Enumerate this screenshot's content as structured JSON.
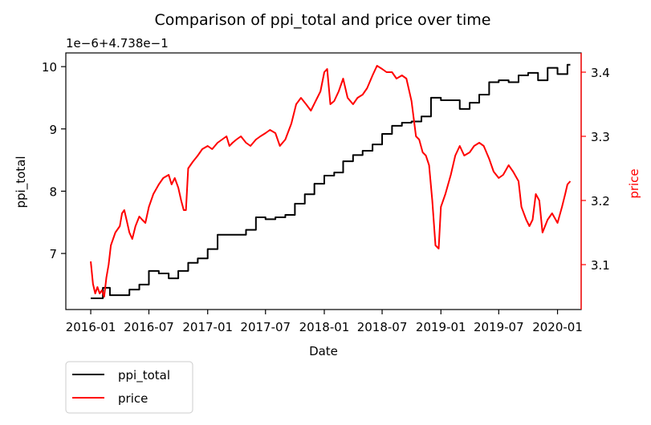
{
  "chart_data": {
    "type": "line",
    "title": "Comparison of ppi_total and price over time",
    "xlabel": "Date",
    "ylabel_left": "ppi_total",
    "ylabel_right": "price",
    "left_offset_text": "1e−6+4.738e−1",
    "x_ticks": [
      "2016-01",
      "2016-07",
      "2017-01",
      "2017-07",
      "2018-01",
      "2018-07",
      "2019-01",
      "2019-07",
      "2020-01"
    ],
    "y_left_ticks": [
      "7",
      "8",
      "9",
      "10"
    ],
    "y_right_ticks": [
      "3.1",
      "3.2",
      "3.3",
      "3.4"
    ],
    "xlim": [
      "2015-10-15",
      "2020-03-15"
    ],
    "ylim_left": [
      6.1,
      10.22
    ],
    "ylim_right": [
      3.03,
      3.43
    ],
    "grid": false,
    "legend_position": "below-left",
    "colors": {
      "ppi_total": "#000000",
      "price": "#ff0000"
    },
    "series": [
      {
        "name": "ppi_total",
        "axis": "left",
        "step": true,
        "points": [
          [
            "2016-01-01",
            6.28
          ],
          [
            "2016-02-08",
            6.28
          ],
          [
            "2016-02-08",
            6.45
          ],
          [
            "2016-03-01",
            6.45
          ],
          [
            "2016-03-01",
            6.33
          ],
          [
            "2016-05-01",
            6.33
          ],
          [
            "2016-05-01",
            6.42
          ],
          [
            "2016-06-01",
            6.42
          ],
          [
            "2016-06-01",
            6.5
          ],
          [
            "2016-07-01",
            6.5
          ],
          [
            "2016-07-01",
            6.72
          ],
          [
            "2016-08-01",
            6.72
          ],
          [
            "2016-08-01",
            6.68
          ],
          [
            "2016-09-01",
            6.68
          ],
          [
            "2016-09-01",
            6.6
          ],
          [
            "2016-10-01",
            6.6
          ],
          [
            "2016-10-01",
            6.72
          ],
          [
            "2016-11-01",
            6.72
          ],
          [
            "2016-11-01",
            6.85
          ],
          [
            "2016-12-01",
            6.85
          ],
          [
            "2016-12-01",
            6.92
          ],
          [
            "2017-01-01",
            6.92
          ],
          [
            "2017-01-01",
            7.07
          ],
          [
            "2017-02-01",
            7.07
          ],
          [
            "2017-02-01",
            7.3
          ],
          [
            "2017-05-01",
            7.3
          ],
          [
            "2017-05-01",
            7.38
          ],
          [
            "2017-06-01",
            7.38
          ],
          [
            "2017-06-01",
            7.58
          ],
          [
            "2017-07-01",
            7.58
          ],
          [
            "2017-07-01",
            7.55
          ],
          [
            "2017-08-01",
            7.55
          ],
          [
            "2017-08-01",
            7.58
          ],
          [
            "2017-09-01",
            7.58
          ],
          [
            "2017-09-01",
            7.62
          ],
          [
            "2017-10-01",
            7.62
          ],
          [
            "2017-10-01",
            7.8
          ],
          [
            "2017-11-01",
            7.8
          ],
          [
            "2017-11-01",
            7.95
          ],
          [
            "2017-12-01",
            7.95
          ],
          [
            "2017-12-01",
            8.12
          ],
          [
            "2018-01-01",
            8.12
          ],
          [
            "2018-01-01",
            8.25
          ],
          [
            "2018-02-01",
            8.25
          ],
          [
            "2018-02-01",
            8.3
          ],
          [
            "2018-03-01",
            8.3
          ],
          [
            "2018-03-01",
            8.48
          ],
          [
            "2018-04-01",
            8.48
          ],
          [
            "2018-04-01",
            8.58
          ],
          [
            "2018-05-01",
            8.58
          ],
          [
            "2018-05-01",
            8.65
          ],
          [
            "2018-06-01",
            8.65
          ],
          [
            "2018-06-01",
            8.75
          ],
          [
            "2018-07-01",
            8.75
          ],
          [
            "2018-07-01",
            8.92
          ],
          [
            "2018-08-01",
            8.92
          ],
          [
            "2018-08-01",
            9.05
          ],
          [
            "2018-09-01",
            9.05
          ],
          [
            "2018-09-01",
            9.1
          ],
          [
            "2018-10-01",
            9.1
          ],
          [
            "2018-10-01",
            9.12
          ],
          [
            "2018-11-01",
            9.12
          ],
          [
            "2018-11-01",
            9.2
          ],
          [
            "2018-12-01",
            9.2
          ],
          [
            "2018-12-01",
            9.5
          ],
          [
            "2019-01-01",
            9.5
          ],
          [
            "2019-01-01",
            9.46
          ],
          [
            "2019-03-01",
            9.46
          ],
          [
            "2019-03-01",
            9.32
          ],
          [
            "2019-04-01",
            9.32
          ],
          [
            "2019-04-01",
            9.42
          ],
          [
            "2019-05-01",
            9.42
          ],
          [
            "2019-05-01",
            9.55
          ],
          [
            "2019-06-01",
            9.55
          ],
          [
            "2019-06-01",
            9.75
          ],
          [
            "2019-07-01",
            9.75
          ],
          [
            "2019-07-01",
            9.78
          ],
          [
            "2019-08-01",
            9.78
          ],
          [
            "2019-08-01",
            9.75
          ],
          [
            "2019-09-01",
            9.75
          ],
          [
            "2019-09-01",
            9.86
          ],
          [
            "2019-10-01",
            9.86
          ],
          [
            "2019-10-01",
            9.9
          ],
          [
            "2019-11-01",
            9.9
          ],
          [
            "2019-11-01",
            9.78
          ],
          [
            "2019-12-01",
            9.78
          ],
          [
            "2019-12-01",
            9.98
          ],
          [
            "2020-01-01",
            9.98
          ],
          [
            "2020-01-01",
            9.88
          ],
          [
            "2020-02-01",
            9.88
          ],
          [
            "2020-02-01",
            10.03
          ],
          [
            "2020-02-10",
            10.03
          ]
        ]
      },
      {
        "name": "price",
        "axis": "right",
        "step": false,
        "points": [
          [
            "2016-01-01",
            3.105
          ],
          [
            "2016-01-08",
            3.07
          ],
          [
            "2016-01-15",
            3.055
          ],
          [
            "2016-01-22",
            3.065
          ],
          [
            "2016-01-29",
            3.055
          ],
          [
            "2016-02-05",
            3.06
          ],
          [
            "2016-02-12",
            3.05
          ],
          [
            "2016-02-19",
            3.08
          ],
          [
            "2016-02-26",
            3.1
          ],
          [
            "2016-03-04",
            3.13
          ],
          [
            "2016-03-11",
            3.14
          ],
          [
            "2016-03-18",
            3.15
          ],
          [
            "2016-03-25",
            3.155
          ],
          [
            "2016-04-01",
            3.16
          ],
          [
            "2016-04-08",
            3.18
          ],
          [
            "2016-04-15",
            3.185
          ],
          [
            "2016-04-22",
            3.17
          ],
          [
            "2016-05-01",
            3.15
          ],
          [
            "2016-05-10",
            3.14
          ],
          [
            "2016-05-20",
            3.16
          ],
          [
            "2016-06-01",
            3.175
          ],
          [
            "2016-06-10",
            3.17
          ],
          [
            "2016-06-20",
            3.165
          ],
          [
            "2016-07-01",
            3.19
          ],
          [
            "2016-07-15",
            3.21
          ],
          [
            "2016-08-01",
            3.225
          ],
          [
            "2016-08-15",
            3.235
          ],
          [
            "2016-09-01",
            3.24
          ],
          [
            "2016-09-10",
            3.225
          ],
          [
            "2016-09-20",
            3.235
          ],
          [
            "2016-10-01",
            3.22
          ],
          [
            "2016-10-10",
            3.2
          ],
          [
            "2016-10-18",
            3.185
          ],
          [
            "2016-10-25",
            3.185
          ],
          [
            "2016-11-01",
            3.25
          ],
          [
            "2016-11-15",
            3.26
          ],
          [
            "2016-12-01",
            3.27
          ],
          [
            "2016-12-15",
            3.28
          ],
          [
            "2017-01-01",
            3.285
          ],
          [
            "2017-01-15",
            3.28
          ],
          [
            "2017-02-01",
            3.29
          ],
          [
            "2017-02-15",
            3.295
          ],
          [
            "2017-03-01",
            3.3
          ],
          [
            "2017-03-10",
            3.285
          ],
          [
            "2017-03-20",
            3.29
          ],
          [
            "2017-04-01",
            3.295
          ],
          [
            "2017-04-15",
            3.3
          ],
          [
            "2017-05-01",
            3.29
          ],
          [
            "2017-05-15",
            3.285
          ],
          [
            "2017-06-01",
            3.295
          ],
          [
            "2017-06-15",
            3.3
          ],
          [
            "2017-07-01",
            3.305
          ],
          [
            "2017-07-15",
            3.31
          ],
          [
            "2017-08-01",
            3.305
          ],
          [
            "2017-08-15",
            3.285
          ],
          [
            "2017-09-01",
            3.295
          ],
          [
            "2017-09-20",
            3.32
          ],
          [
            "2017-10-05",
            3.35
          ],
          [
            "2017-10-20",
            3.36
          ],
          [
            "2017-11-05",
            3.35
          ],
          [
            "2017-11-20",
            3.34
          ],
          [
            "2017-12-05",
            3.355
          ],
          [
            "2017-12-20",
            3.37
          ],
          [
            "2018-01-01",
            3.4
          ],
          [
            "2018-01-10",
            3.405
          ],
          [
            "2018-01-20",
            3.35
          ],
          [
            "2018-02-01",
            3.355
          ],
          [
            "2018-02-15",
            3.37
          ],
          [
            "2018-03-01",
            3.39
          ],
          [
            "2018-03-15",
            3.36
          ],
          [
            "2018-04-01",
            3.35
          ],
          [
            "2018-04-15",
            3.36
          ],
          [
            "2018-05-01",
            3.365
          ],
          [
            "2018-05-15",
            3.375
          ],
          [
            "2018-06-01",
            3.395
          ],
          [
            "2018-06-15",
            3.41
          ],
          [
            "2018-07-01",
            3.405
          ],
          [
            "2018-07-15",
            3.4
          ],
          [
            "2018-08-01",
            3.4
          ],
          [
            "2018-08-15",
            3.39
          ],
          [
            "2018-09-01",
            3.395
          ],
          [
            "2018-09-15",
            3.39
          ],
          [
            "2018-10-01",
            3.355
          ],
          [
            "2018-10-15",
            3.3
          ],
          [
            "2018-10-25",
            3.295
          ],
          [
            "2018-11-05",
            3.275
          ],
          [
            "2018-11-15",
            3.27
          ],
          [
            "2018-11-25",
            3.255
          ],
          [
            "2018-12-05",
            3.2
          ],
          [
            "2018-12-15",
            3.13
          ],
          [
            "2018-12-25",
            3.125
          ],
          [
            "2019-01-01",
            3.19
          ],
          [
            "2019-01-15",
            3.21
          ],
          [
            "2019-02-01",
            3.24
          ],
          [
            "2019-02-15",
            3.27
          ],
          [
            "2019-03-01",
            3.285
          ],
          [
            "2019-03-15",
            3.27
          ],
          [
            "2019-04-01",
            3.275
          ],
          [
            "2019-04-15",
            3.285
          ],
          [
            "2019-05-01",
            3.29
          ],
          [
            "2019-05-15",
            3.285
          ],
          [
            "2019-06-01",
            3.265
          ],
          [
            "2019-06-15",
            3.245
          ],
          [
            "2019-07-01",
            3.235
          ],
          [
            "2019-07-15",
            3.24
          ],
          [
            "2019-08-01",
            3.255
          ],
          [
            "2019-08-15",
            3.245
          ],
          [
            "2019-09-01",
            3.23
          ],
          [
            "2019-09-10",
            3.19
          ],
          [
            "2019-09-25",
            3.17
          ],
          [
            "2019-10-05",
            3.16
          ],
          [
            "2019-10-15",
            3.17
          ],
          [
            "2019-10-25",
            3.21
          ],
          [
            "2019-11-05",
            3.2
          ],
          [
            "2019-11-15",
            3.15
          ],
          [
            "2019-12-01",
            3.17
          ],
          [
            "2019-12-15",
            3.18
          ],
          [
            "2020-01-01",
            3.165
          ],
          [
            "2020-01-15",
            3.19
          ],
          [
            "2020-01-25",
            3.21
          ],
          [
            "2020-02-01",
            3.225
          ],
          [
            "2020-02-10",
            3.23
          ]
        ]
      }
    ]
  }
}
